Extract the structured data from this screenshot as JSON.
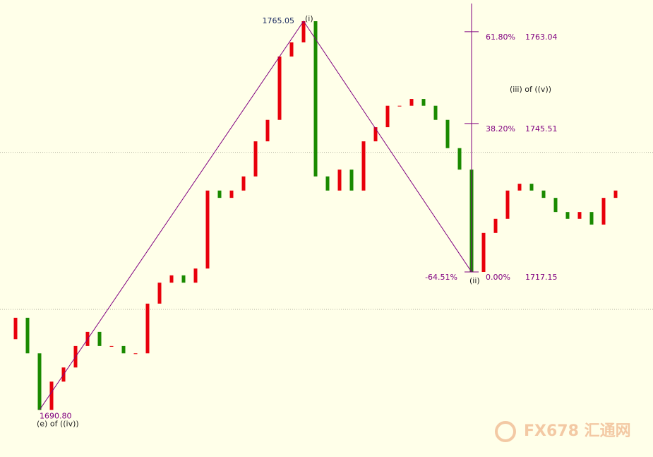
{
  "chart_data": {
    "type": "price-bars",
    "values": [
      1704.3,
      1708.4,
      1701.6,
      1690.8,
      1696.2,
      1698.9,
      1703.0,
      1705.7,
      1703.0,
      1703.0,
      1701.6,
      1701.6,
      1711.1,
      1715.1,
      1716.5,
      1715.1,
      1717.8,
      1732.7,
      1731.3,
      1732.7,
      1735.4,
      1742.1,
      1746.2,
      1758.3,
      1761.0,
      1765.05,
      1735.4,
      1732.7,
      1736.7,
      1732.7,
      1742.1,
      1744.8,
      1748.9,
      1748.9,
      1750.2,
      1748.9,
      1746.2,
      1740.8,
      1736.7,
      1717.15,
      1724.6,
      1727.3,
      1732.7,
      1734.0,
      1732.7,
      1731.3,
      1728.6,
      1727.3,
      1728.6,
      1726.2,
      1731.3,
      1732.7
    ],
    "up_color": "#e8000b",
    "down_color": "#1a8a00",
    "ylim": [
      1681.8,
      1769.1
    ],
    "grid_levels": [
      1740,
      1710
    ],
    "wave_color": "#800080",
    "pivots": [
      {
        "index": 3,
        "price": {
          "value": 1690.8,
          "label": "1690.80"
        },
        "label": "(e) of ((iv))"
      },
      {
        "index": 25,
        "price": {
          "value": 1765.05,
          "label": "1765.05"
        },
        "label": "(i)"
      },
      {
        "index": 39,
        "price": {
          "value": 1717.15,
          "label": "1717.15"
        },
        "label": "(ii)"
      }
    ],
    "fib": {
      "levels": [
        {
          "label": "61.80%",
          "price": 1763.04
        },
        {
          "label": "38.20%",
          "price": 1745.51
        },
        {
          "label": "0.00%",
          "price": 1717.15
        }
      ],
      "extension_label": "-64.51%"
    },
    "annotation": "(iii) of ((v))",
    "watermark": "FX678 汇通网"
  }
}
